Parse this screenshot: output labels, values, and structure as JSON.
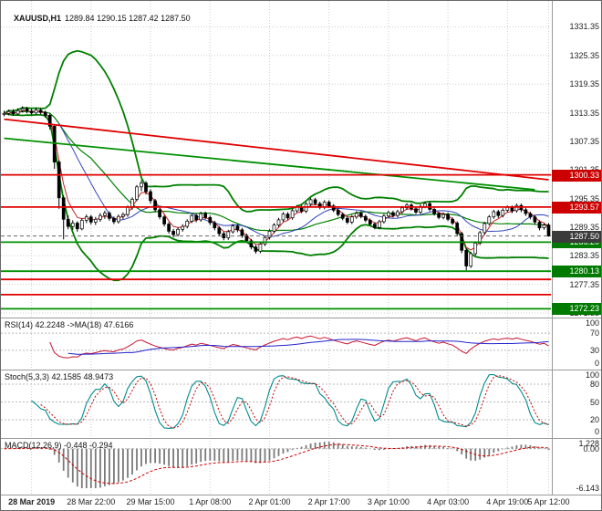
{
  "titles": {
    "symbol": "XAUUSD,H1",
    "ohlc": "1289.84 1290.15 1287.42 1287.50",
    "rsi": "RSI(14) 42.2248 ->MA(18) 47.6166",
    "stoch": "Stoch(5,3,3) 42.1585 48.9473",
    "macd": "MACD(12,26,9) -0.448 -0.294"
  },
  "colors": {
    "background": "#ffffff",
    "grid": "#cfcfcf",
    "bull": "#ffffff",
    "bear": "#000000",
    "candle_line": "#000000",
    "bands": "#008000",
    "ma_fast": "#cc2222",
    "ma_slow": "#3344bb",
    "level_red": "#e00000",
    "level_green": "#009000",
    "badge_red": "#cc0000",
    "badge_green": "#007a00",
    "badge_current": "#3b3b3b",
    "current": "#666666",
    "ind_level": "#b8b8b8",
    "rsi": "#c81432",
    "rsi_ma": "#2222cc",
    "stoch_k": "#008b8b",
    "stoch_d": "#cc0000",
    "macd_hist": "#7a7a7a",
    "macd_signal": "#cc0000",
    "axis_text": "#222222"
  },
  "chart_data": {
    "type": "candlestick",
    "symbol": "XAUUSD",
    "timeframe": "H1",
    "current_bar": {
      "open": 1289.84,
      "high": 1290.15,
      "low": 1287.42,
      "close": 1287.5
    },
    "current_price": 1287.5,
    "price_axis": {
      "min": 1270.4,
      "max": 1336.8,
      "gridlines": [
        1331.35,
        1325.35,
        1319.35,
        1313.35,
        1307.35,
        1301.35,
        1295.35,
        1289.35,
        1283.35,
        1277.35,
        1271.35
      ]
    },
    "time_axis": [
      {
        "label": "28 Mar 2019",
        "bar": 6
      },
      {
        "label": "28 Mar 22:00",
        "bar": 19
      },
      {
        "label": "29 Mar 15:00",
        "bar": 32
      },
      {
        "label": "1 Apr 08:00",
        "bar": 45
      },
      {
        "label": "2 Apr 01:00",
        "bar": 58
      },
      {
        "label": "2 Apr 17:00",
        "bar": 71
      },
      {
        "label": "3 Apr 10:00",
        "bar": 84
      },
      {
        "label": "4 Apr 03:00",
        "bar": 97
      },
      {
        "label": "4 Apr 19:00",
        "bar": 110
      },
      {
        "label": "5 Apr 12:00",
        "bar": 119
      }
    ],
    "levels": [
      {
        "price": 1300.33,
        "color": "red"
      },
      {
        "price": 1293.57,
        "color": "red"
      },
      {
        "price": 1286.2,
        "color": "green"
      },
      {
        "price": 1280.13,
        "color": "green"
      },
      {
        "price": 1278.4,
        "color": "red"
      },
      {
        "price": 1275.2,
        "color": "red"
      },
      {
        "price": 1272.23,
        "color": "green"
      }
    ],
    "badges": [
      {
        "price": 1300.33,
        "variant": "red"
      },
      {
        "price": 1293.57,
        "variant": "red"
      },
      {
        "price": 1286.2,
        "variant": "green"
      },
      {
        "price": 1280.13,
        "variant": "green"
      },
      {
        "price": 1272.23,
        "variant": "green"
      },
      {
        "price": 1287.5,
        "variant": "current"
      }
    ],
    "trendlines": [
      {
        "from_bar": 0,
        "from_price": 1312.0,
        "to_bar": 119,
        "to_price": 1299.3,
        "color": "red"
      },
      {
        "from_bar": 0,
        "from_price": 1308.0,
        "to_bar": 116,
        "to_price": 1297.2,
        "color": "green"
      }
    ],
    "candles": [
      [
        1313.0,
        1313.8,
        1312.6,
        1313.2
      ],
      [
        1313.2,
        1314.0,
        1312.8,
        1313.6
      ],
      [
        1313.6,
        1314.1,
        1312.7,
        1313.1
      ],
      [
        1313.1,
        1314.3,
        1312.8,
        1313.8
      ],
      [
        1313.8,
        1314.7,
        1313.4,
        1314.2
      ],
      [
        1314.2,
        1314.6,
        1313.2,
        1313.7
      ],
      [
        1313.7,
        1314.2,
        1312.9,
        1313.3
      ],
      [
        1313.3,
        1314.4,
        1313.0,
        1313.9
      ],
      [
        1313.9,
        1314.3,
        1313.0,
        1313.4
      ],
      [
        1313.4,
        1313.8,
        1312.3,
        1312.8
      ],
      [
        1312.8,
        1313.2,
        1309.8,
        1310.5
      ],
      [
        1310.5,
        1310.9,
        1301.6,
        1303.0
      ],
      [
        1303.0,
        1303.4,
        1293.2,
        1295.5
      ],
      [
        1295.5,
        1296.0,
        1286.8,
        1291.0
      ],
      [
        1291.0,
        1291.8,
        1288.9,
        1289.5
      ],
      [
        1289.5,
        1290.8,
        1288.8,
        1290.2
      ],
      [
        1290.2,
        1290.6,
        1288.4,
        1289.0
      ],
      [
        1289.0,
        1291.2,
        1288.7,
        1290.8
      ],
      [
        1290.8,
        1292.0,
        1290.2,
        1291.5
      ],
      [
        1291.5,
        1291.9,
        1289.9,
        1290.4
      ],
      [
        1290.4,
        1291.5,
        1289.8,
        1291.0
      ],
      [
        1291.0,
        1292.3,
        1290.5,
        1291.8
      ],
      [
        1291.8,
        1292.8,
        1291.1,
        1292.3
      ],
      [
        1292.3,
        1292.7,
        1290.7,
        1291.2
      ],
      [
        1291.2,
        1291.6,
        1290.0,
        1290.5
      ],
      [
        1290.5,
        1292.0,
        1290.1,
        1291.6
      ],
      [
        1291.6,
        1292.4,
        1291.0,
        1292.0
      ],
      [
        1292.0,
        1293.9,
        1291.5,
        1293.5
      ],
      [
        1293.5,
        1295.6,
        1293.0,
        1295.2
      ],
      [
        1295.2,
        1298.2,
        1294.8,
        1297.8
      ],
      [
        1297.8,
        1299.2,
        1296.9,
        1298.6
      ],
      [
        1298.6,
        1299.0,
        1296.2,
        1296.8
      ],
      [
        1296.8,
        1297.3,
        1294.3,
        1294.9
      ],
      [
        1294.9,
        1295.3,
        1292.5,
        1293.0
      ],
      [
        1293.0,
        1293.4,
        1291.0,
        1291.5
      ],
      [
        1291.5,
        1291.9,
        1289.5,
        1290.0
      ],
      [
        1290.0,
        1290.4,
        1288.0,
        1288.5
      ],
      [
        1288.5,
        1289.0,
        1287.2,
        1287.8
      ],
      [
        1287.8,
        1289.3,
        1287.4,
        1288.9
      ],
      [
        1288.9,
        1290.0,
        1288.4,
        1289.5
      ],
      [
        1289.5,
        1291.0,
        1289.1,
        1290.6
      ],
      [
        1290.6,
        1292.2,
        1290.2,
        1291.8
      ],
      [
        1291.8,
        1292.2,
        1290.4,
        1290.9
      ],
      [
        1290.9,
        1292.6,
        1290.5,
        1292.2
      ],
      [
        1292.2,
        1292.6,
        1291.0,
        1291.4
      ],
      [
        1291.4,
        1291.8,
        1289.8,
        1290.3
      ],
      [
        1290.3,
        1290.7,
        1288.7,
        1289.2
      ],
      [
        1289.2,
        1289.6,
        1287.5,
        1288.0
      ],
      [
        1288.0,
        1288.4,
        1286.6,
        1287.1
      ],
      [
        1287.1,
        1288.8,
        1286.7,
        1288.4
      ],
      [
        1288.4,
        1290.0,
        1288.0,
        1289.6
      ],
      [
        1289.6,
        1290.0,
        1288.3,
        1288.8
      ],
      [
        1288.8,
        1289.2,
        1287.1,
        1287.6
      ],
      [
        1287.6,
        1288.0,
        1286.0,
        1286.5
      ],
      [
        1286.5,
        1286.9,
        1284.7,
        1285.2
      ],
      [
        1285.2,
        1285.6,
        1283.8,
        1284.3
      ],
      [
        1284.3,
        1286.2,
        1283.9,
        1285.8
      ],
      [
        1285.8,
        1287.6,
        1285.4,
        1287.2
      ],
      [
        1287.2,
        1288.9,
        1286.8,
        1288.5
      ],
      [
        1288.5,
        1290.2,
        1288.1,
        1289.8
      ],
      [
        1289.8,
        1291.3,
        1289.4,
        1290.9
      ],
      [
        1290.9,
        1292.5,
        1290.5,
        1292.1
      ],
      [
        1292.1,
        1292.5,
        1290.9,
        1291.3
      ],
      [
        1291.3,
        1293.2,
        1290.9,
        1292.8
      ],
      [
        1292.8,
        1294.0,
        1292.4,
        1293.6
      ],
      [
        1293.6,
        1294.0,
        1292.3,
        1292.7
      ],
      [
        1292.7,
        1294.6,
        1292.3,
        1294.2
      ],
      [
        1294.2,
        1295.5,
        1293.8,
        1295.1
      ],
      [
        1295.1,
        1295.5,
        1293.9,
        1294.3
      ],
      [
        1294.3,
        1294.7,
        1293.1,
        1293.5
      ],
      [
        1293.5,
        1295.0,
        1293.1,
        1294.6
      ],
      [
        1294.6,
        1295.0,
        1293.4,
        1293.8
      ],
      [
        1293.8,
        1294.2,
        1292.5,
        1292.9
      ],
      [
        1292.9,
        1293.3,
        1291.6,
        1292.0
      ],
      [
        1292.0,
        1292.4,
        1290.8,
        1291.2
      ],
      [
        1291.2,
        1291.6,
        1290.0,
        1290.4
      ],
      [
        1290.4,
        1291.9,
        1290.0,
        1291.5
      ],
      [
        1291.5,
        1292.7,
        1291.1,
        1292.3
      ],
      [
        1292.3,
        1292.7,
        1291.2,
        1291.6
      ],
      [
        1291.6,
        1292.0,
        1290.4,
        1290.8
      ],
      [
        1290.8,
        1291.2,
        1289.6,
        1290.0
      ],
      [
        1290.0,
        1290.4,
        1288.9,
        1289.3
      ],
      [
        1289.3,
        1290.9,
        1288.9,
        1290.5
      ],
      [
        1290.5,
        1292.1,
        1290.1,
        1291.7
      ],
      [
        1291.7,
        1292.8,
        1291.3,
        1292.4
      ],
      [
        1292.4,
        1292.8,
        1291.4,
        1291.8
      ],
      [
        1291.8,
        1293.0,
        1291.4,
        1292.6
      ],
      [
        1292.6,
        1293.8,
        1292.2,
        1293.4
      ],
      [
        1293.4,
        1294.4,
        1293.0,
        1294.0
      ],
      [
        1294.0,
        1294.4,
        1292.8,
        1293.2
      ],
      [
        1293.2,
        1293.6,
        1292.1,
        1292.5
      ],
      [
        1292.5,
        1294.1,
        1292.1,
        1293.7
      ],
      [
        1293.7,
        1294.7,
        1293.3,
        1294.3
      ],
      [
        1294.3,
        1294.7,
        1292.7,
        1293.1
      ],
      [
        1293.1,
        1293.5,
        1291.8,
        1292.2
      ],
      [
        1292.2,
        1292.6,
        1291.0,
        1291.4
      ],
      [
        1291.4,
        1292.4,
        1291.0,
        1292.0
      ],
      [
        1292.0,
        1292.4,
        1290.6,
        1291.0
      ],
      [
        1291.0,
        1291.4,
        1289.8,
        1290.2
      ],
      [
        1290.2,
        1290.6,
        1287.5,
        1288.0
      ],
      [
        1288.0,
        1288.4,
        1283.9,
        1284.5
      ],
      [
        1284.5,
        1284.9,
        1280.3,
        1281.2
      ],
      [
        1281.2,
        1284.2,
        1280.8,
        1283.8
      ],
      [
        1283.8,
        1286.4,
        1283.4,
        1286.0
      ],
      [
        1286.0,
        1288.6,
        1285.6,
        1288.2
      ],
      [
        1288.2,
        1290.5,
        1287.8,
        1290.1
      ],
      [
        1290.1,
        1291.9,
        1289.7,
        1291.5
      ],
      [
        1291.5,
        1293.0,
        1291.1,
        1292.6
      ],
      [
        1292.6,
        1293.0,
        1291.3,
        1291.8
      ],
      [
        1291.8,
        1293.3,
        1291.4,
        1292.9
      ],
      [
        1292.9,
        1293.9,
        1292.5,
        1293.5
      ],
      [
        1293.5,
        1293.9,
        1292.3,
        1292.8
      ],
      [
        1292.8,
        1294.3,
        1292.4,
        1293.9
      ],
      [
        1293.9,
        1294.3,
        1292.5,
        1293.0
      ],
      [
        1293.0,
        1293.4,
        1291.7,
        1292.2
      ],
      [
        1292.2,
        1292.6,
        1291.0,
        1291.5
      ],
      [
        1291.5,
        1291.9,
        1289.9,
        1290.4
      ],
      [
        1290.4,
        1290.8,
        1288.7,
        1289.2
      ],
      [
        1289.2,
        1290.1,
        1288.8,
        1289.8
      ],
      [
        1289.8,
        1290.2,
        1287.4,
        1287.5
      ]
    ],
    "indicators": {
      "rsi": {
        "label": "RSI(14) 42.2248 ->MA(18) 47.6166",
        "period": 14,
        "ma_period": 18,
        "last": 42.2248,
        "ma_last": 47.6166,
        "scale": [
          100,
          70,
          30,
          0
        ],
        "levels": [
          70,
          30
        ]
      },
      "stoch": {
        "label": "Stoch(5,3,3) 42.1585 48.9473",
        "k": 5,
        "d": 3,
        "slowing": 3,
        "last_k": 42.1585,
        "last_d": 48.9473,
        "scale": [
          100,
          80,
          50,
          20,
          0
        ],
        "levels": [
          80,
          50,
          20
        ]
      },
      "macd": {
        "label": "MACD(12,26,9) -0.448 -0.294",
        "fast": 12,
        "slow": 26,
        "signal": 9,
        "last": -0.448,
        "last_signal": -0.294,
        "scale_max": 1.228,
        "scale_min": -6.143,
        "scale": [
          {
            "v": 1.228,
            "text": "1.228"
          },
          {
            "v": 0,
            "text": "0.00"
          },
          {
            "v": -6.143,
            "text": "-6.143"
          }
        ]
      }
    }
  }
}
